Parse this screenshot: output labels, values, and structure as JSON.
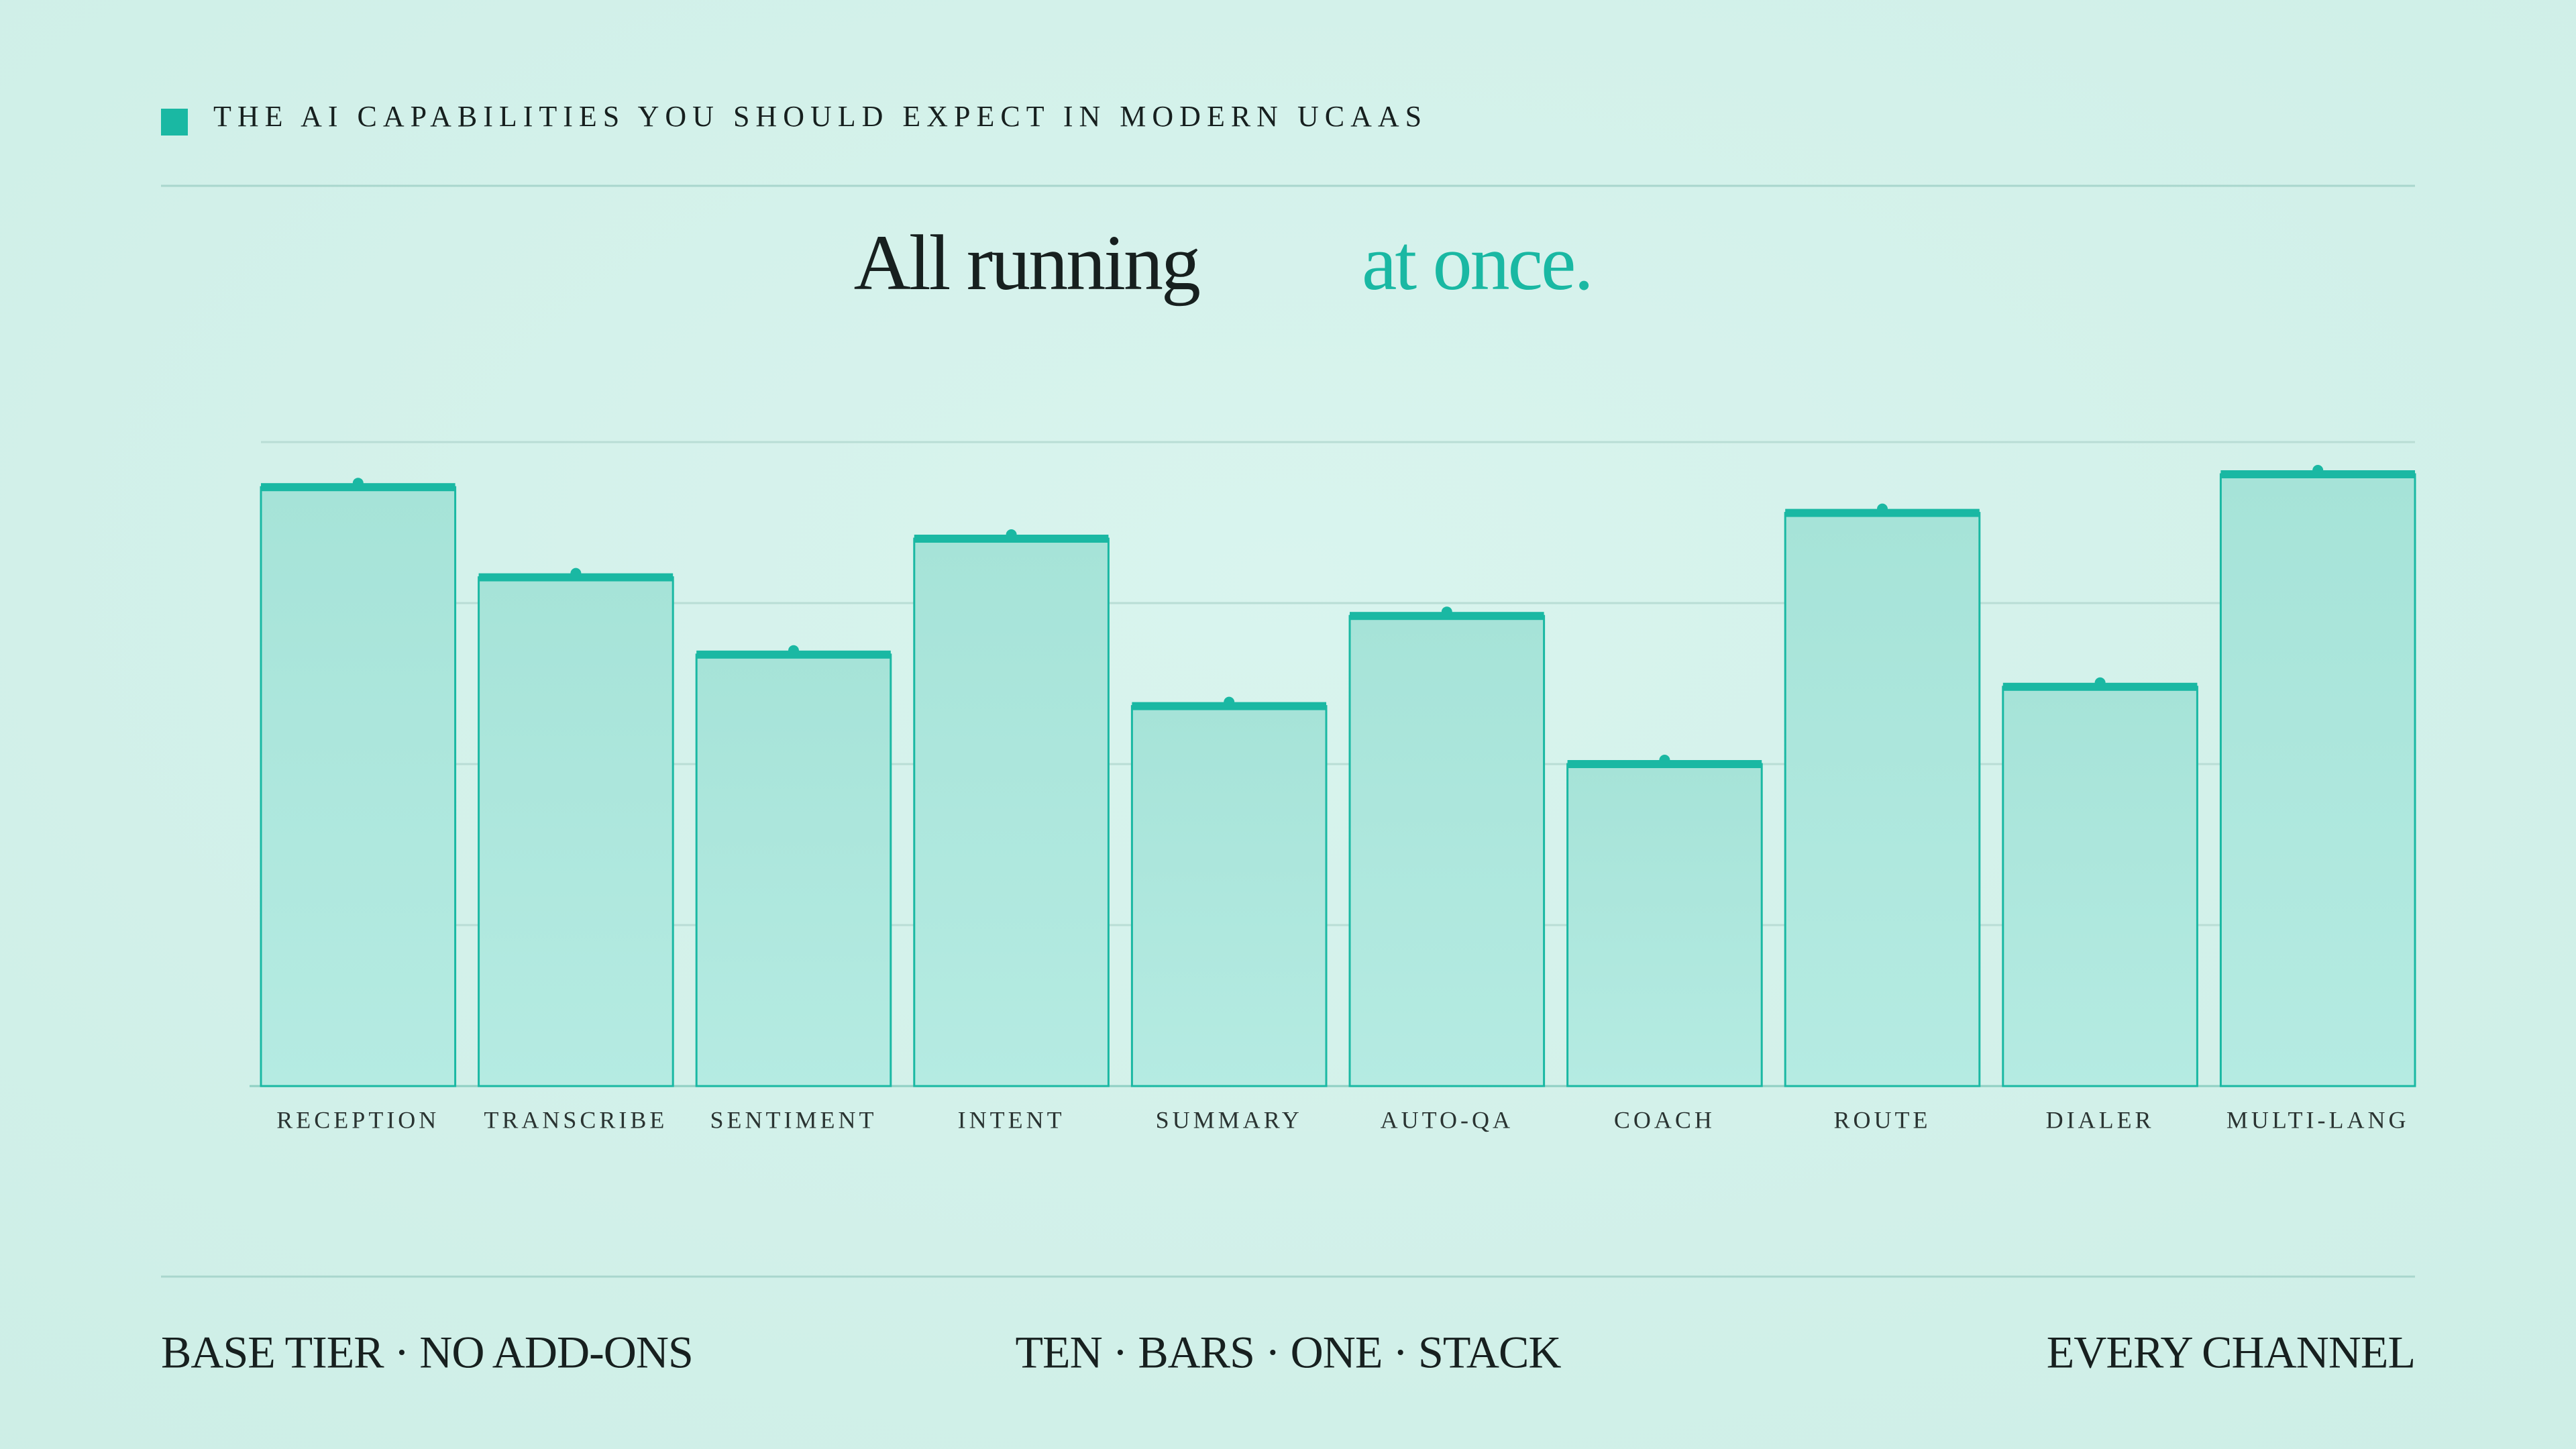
{
  "header": {
    "label": "THE AI CAPABILITIES YOU SHOULD EXPECT IN MODERN UCAAS"
  },
  "chart_data": {
    "type": "bar",
    "title": {
      "main": "All running",
      "accent": "at once."
    },
    "categories": [
      "RECEPTION",
      "TRANSCRIBE",
      "SENTIMENT",
      "INTENT",
      "SUMMARY",
      "AUTO-QA",
      "COACH",
      "ROUTE",
      "DIALER",
      "MULTI-LANG"
    ],
    "values": [
      93,
      79,
      67,
      85,
      59,
      73,
      50,
      89,
      62,
      95
    ],
    "color": "#1ab8a3",
    "ylim": [
      0,
      100
    ],
    "yticks": [
      0,
      25,
      50,
      75,
      100
    ],
    "tick_labels": false,
    "grid": true
  },
  "footer": {
    "left": "BASE TIER · NO ADD-ONS",
    "center": "TEN · BARS · ONE · STACK",
    "right": "EVERY CHANNEL"
  }
}
